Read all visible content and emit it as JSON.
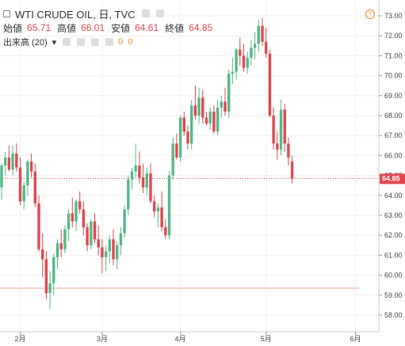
{
  "header": {
    "symbol": "WTI CRUDE OIL, 日, TVC",
    "open_label": "始値",
    "open_value": "65.71",
    "high_label": "高値",
    "high_value": "66.01",
    "low_label": "安値",
    "low_value": "64.61",
    "close_label": "終値",
    "close_value": "64.85",
    "indicator_label": "出来高 (20)",
    "indicator_value_1": "0",
    "indicator_value_2": "0"
  },
  "warning_glyph": "!",
  "colors": {
    "up": "#53b987",
    "down": "#e2474e",
    "price_line": "#e2474e",
    "hline": "#f0a58e",
    "axis_text": "#444444"
  },
  "chart_data": {
    "type": "candlestick",
    "title": "WTI CRUDE OIL, 日, TVC",
    "ylim": [
      57.2,
      73.5
    ],
    "y_ticks": [
      "58.00",
      "59.00",
      "60.00",
      "61.00",
      "62.00",
      "63.00",
      "64.00",
      "65.00",
      "66.00",
      "67.00",
      "68.00",
      "69.00",
      "70.00",
      "71.00",
      "72.00",
      "73.00"
    ],
    "x_ticks": [
      "2月",
      "3月",
      "4月",
      "5月",
      "6月"
    ],
    "x_tick_index": [
      5,
      27,
      48,
      71,
      95
    ],
    "last_price": "64.85",
    "horizontal_line": 59.35,
    "candles": [
      [
        64.4,
        65.6,
        63.8,
        65.5
      ],
      [
        65.5,
        66.2,
        65.0,
        65.9
      ],
      [
        65.9,
        66.5,
        65.2,
        65.3
      ],
      [
        65.3,
        66.5,
        65.0,
        66.1
      ],
      [
        66.1,
        66.6,
        65.2,
        65.4
      ],
      [
        65.4,
        65.9,
        63.5,
        63.7
      ],
      [
        63.7,
        64.7,
        63.3,
        64.5
      ],
      [
        64.5,
        65.8,
        64.0,
        65.7
      ],
      [
        65.7,
        66.1,
        64.9,
        65.2
      ],
      [
        65.2,
        65.6,
        63.4,
        63.6
      ],
      [
        63.6,
        64.0,
        61.2,
        61.3
      ],
      [
        61.3,
        62.1,
        59.9,
        60.8
      ],
      [
        60.8,
        61.2,
        58.8,
        59.1
      ],
      [
        59.1,
        60.2,
        58.3,
        59.6
      ],
      [
        59.6,
        61.1,
        59.0,
        60.9
      ],
      [
        60.9,
        61.8,
        60.3,
        61.6
      ],
      [
        61.6,
        62.3,
        60.9,
        61.3
      ],
      [
        61.3,
        62.5,
        61.1,
        62.3
      ],
      [
        62.3,
        63.3,
        61.7,
        63.1
      ],
      [
        63.1,
        63.9,
        62.4,
        62.7
      ],
      [
        62.7,
        63.8,
        62.2,
        63.7
      ],
      [
        63.7,
        64.2,
        63.1,
        63.3
      ],
      [
        63.3,
        63.7,
        62.0,
        62.4
      ],
      [
        62.4,
        62.6,
        61.2,
        61.5
      ],
      [
        61.5,
        62.8,
        61.3,
        62.7
      ],
      [
        62.7,
        63.1,
        61.6,
        61.8
      ],
      [
        61.8,
        62.5,
        61.0,
        61.4
      ],
      [
        61.4,
        61.8,
        60.1,
        60.9
      ],
      [
        60.9,
        61.5,
        60.2,
        61.2
      ],
      [
        61.2,
        62.0,
        60.6,
        61.8
      ],
      [
        61.8,
        62.3,
        60.5,
        60.8
      ],
      [
        60.8,
        61.7,
        60.3,
        61.5
      ],
      [
        61.5,
        62.4,
        61.0,
        62.1
      ],
      [
        62.1,
        63.5,
        61.9,
        63.3
      ],
      [
        63.3,
        65.0,
        63.0,
        64.8
      ],
      [
        64.8,
        65.4,
        64.3,
        65.2
      ],
      [
        65.2,
        66.6,
        64.9,
        65.5
      ],
      [
        65.5,
        66.2,
        64.6,
        64.9
      ],
      [
        64.9,
        65.6,
        64.1,
        64.4
      ],
      [
        64.4,
        65.4,
        64.0,
        65.1
      ],
      [
        65.1,
        65.6,
        63.6,
        63.7
      ],
      [
        63.7,
        64.0,
        62.9,
        63.2
      ],
      [
        63.2,
        63.6,
        62.4,
        63.4
      ],
      [
        63.4,
        64.2,
        62.2,
        62.4
      ],
      [
        62.4,
        62.8,
        61.8,
        62.0
      ],
      [
        62.0,
        65.2,
        61.8,
        65.0
      ],
      [
        65.0,
        66.9,
        64.8,
        66.6
      ],
      [
        66.6,
        67.1,
        65.8,
        65.9
      ],
      [
        65.9,
        68.0,
        65.7,
        67.9
      ],
      [
        67.9,
        68.2,
        67.0,
        67.2
      ],
      [
        67.2,
        67.5,
        66.3,
        66.6
      ],
      [
        66.6,
        68.8,
        66.3,
        68.5
      ],
      [
        68.5,
        69.5,
        67.8,
        68.0
      ],
      [
        68.0,
        69.4,
        67.6,
        68.9
      ],
      [
        68.9,
        69.3,
        67.6,
        67.9
      ],
      [
        67.9,
        68.2,
        67.5,
        67.6
      ],
      [
        67.6,
        68.4,
        67.3,
        68.2
      ],
      [
        68.2,
        68.5,
        67.1,
        67.2
      ],
      [
        67.2,
        68.8,
        67.0,
        68.4
      ],
      [
        68.4,
        69.0,
        67.9,
        68.7
      ],
      [
        68.7,
        69.4,
        68.0,
        68.2
      ],
      [
        68.2,
        70.3,
        67.9,
        70.1
      ],
      [
        70.1,
        70.9,
        69.6,
        70.2
      ],
      [
        70.2,
        71.4,
        69.8,
        71.3
      ],
      [
        71.3,
        71.9,
        70.5,
        71.0
      ],
      [
        71.0,
        71.6,
        70.2,
        70.4
      ],
      [
        70.4,
        71.2,
        70.1,
        70.9
      ],
      [
        70.9,
        71.8,
        70.5,
        71.4
      ],
      [
        71.4,
        72.2,
        70.8,
        71.6
      ],
      [
        71.6,
        72.8,
        71.2,
        72.5
      ],
      [
        72.5,
        72.9,
        71.5,
        71.7
      ],
      [
        71.7,
        72.4,
        70.9,
        71.1
      ],
      [
        71.1,
        71.3,
        67.9,
        68.0
      ],
      [
        68.0,
        68.4,
        66.3,
        66.6
      ],
      [
        66.6,
        67.2,
        65.8,
        66.3
      ],
      [
        66.3,
        68.8,
        66.0,
        68.3
      ],
      [
        68.3,
        68.6,
        66.2,
        66.6
      ],
      [
        66.6,
        66.9,
        65.5,
        65.9
      ],
      [
        65.7,
        66.0,
        64.6,
        64.85
      ]
    ]
  }
}
